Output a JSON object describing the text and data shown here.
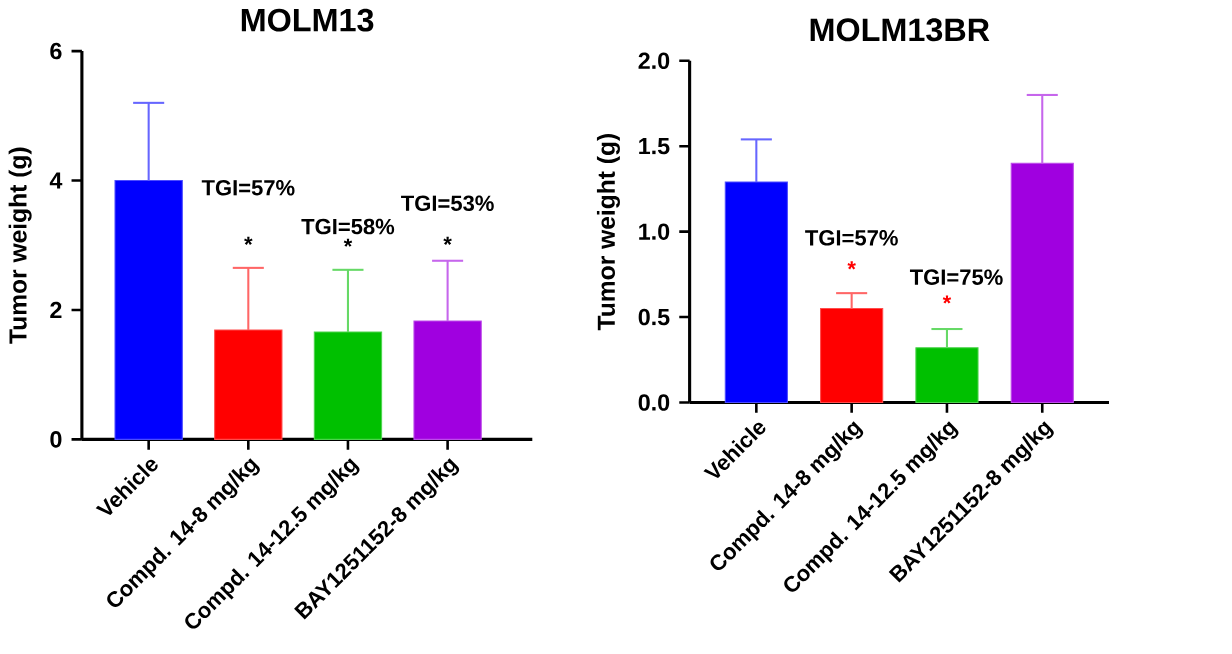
{
  "chart_data": [
    {
      "type": "bar",
      "title": "MOLM13",
      "ylabel": "Tumor weight (g)",
      "categories": [
        "Vehicle",
        "Compd. 14-8 mg/kg",
        "Compd. 14-12.5 mg/kg",
        "BAY1251152-8 mg/kg"
      ],
      "values": [
        4.0,
        1.69,
        1.66,
        1.83
      ],
      "colors": [
        "#0000ff",
        "#ff0000",
        "#00c000",
        "#a000e0"
      ],
      "errors": [
        [
          4.0,
          5.2
        ],
        [
          1.69,
          2.65
        ],
        [
          1.66,
          2.62
        ],
        [
          1.83,
          2.76
        ]
      ],
      "ylim": [
        0,
        6
      ],
      "yticks": [
        0,
        2,
        4,
        6
      ],
      "annotations": [
        "TGI=57%",
        "TGI=58%",
        "TGI=53%",
        "*",
        "*",
        "*"
      ]
    },
    {
      "type": "bar",
      "title": "MOLM13BR",
      "ylabel": "Tumor weight (g)",
      "categories": [
        "Vehicle",
        "Compd. 14-8 mg/kg",
        "Compd. 14-12.5 mg/kg",
        "BAY1251152-8 mg/kg"
      ],
      "values": [
        1.29,
        0.55,
        0.32,
        1.4
      ],
      "colors": [
        "#0000ff",
        "#ff0000",
        "#00c000",
        "#a000e0"
      ],
      "errors": [
        [
          1.29,
          1.54
        ],
        [
          0.55,
          0.64
        ],
        [
          0.32,
          0.43
        ],
        [
          1.4,
          1.8
        ]
      ],
      "ylim": [
        0,
        2
      ],
      "yticks": [
        {
          "value": 0,
          "label": "0.0"
        },
        {
          "value": 0.5,
          "label": "0.5"
        },
        {
          "value": 1,
          "label": "1.0"
        },
        {
          "value": 1.5,
          "label": "1.5"
        },
        {
          "value": 2,
          "label": "2.0"
        }
      ],
      "annotations": [
        "TGI=57%",
        "TGI=75%",
        "*",
        "*"
      ]
    }
  ]
}
